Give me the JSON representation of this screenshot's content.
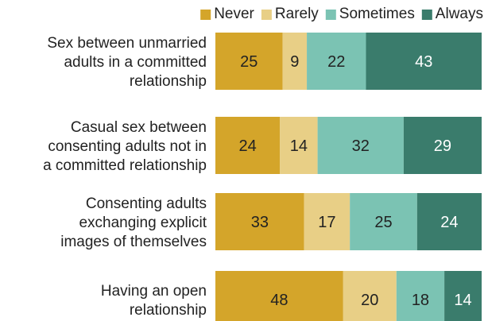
{
  "chart_data": {
    "type": "bar",
    "orientation": "horizontal",
    "stacked": true,
    "categories": [
      [
        "Sex between unmarried",
        "adults in a committed",
        "relationship"
      ],
      [
        "Casual sex between",
        "consenting adults not in",
        "a committed relationship"
      ],
      [
        "Consenting adults",
        "exchanging explicit",
        "images of themselves"
      ],
      [
        "Having an open",
        "relationship"
      ]
    ],
    "series": [
      {
        "name": "Never",
        "color": "#D4A52A",
        "label_color": "#222222",
        "values": [
          25,
          24,
          33,
          48
        ]
      },
      {
        "name": "Rarely",
        "color": "#E8CF86",
        "label_color": "#222222",
        "values": [
          9,
          14,
          17,
          20
        ]
      },
      {
        "name": "Sometimes",
        "color": "#7BC3B3",
        "label_color": "#222222",
        "values": [
          22,
          32,
          25,
          18
        ]
      },
      {
        "name": "Always",
        "color": "#3A7C6C",
        "label_color": "#ffffff",
        "values": [
          43,
          29,
          24,
          14
        ]
      }
    ],
    "legend_position": "top-right",
    "grid": false
  }
}
